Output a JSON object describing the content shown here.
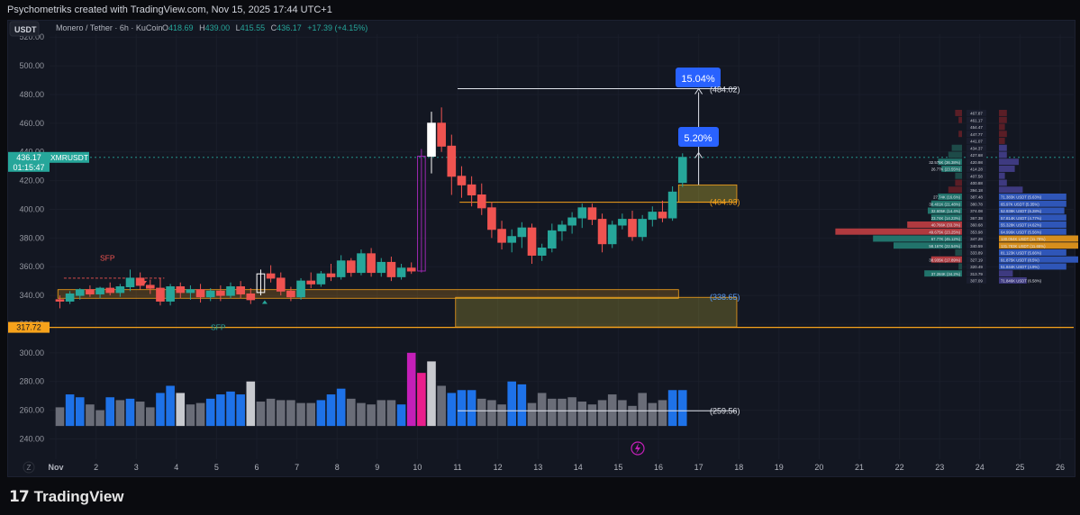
{
  "header": {
    "attribution": "Psychometriks created with TradingView.com, Nov 15, 2025 17:44 UTC+1",
    "currency_button": "USDT",
    "symbol_line": "Monero / Tether · 6h · KuCoin",
    "ohlc": {
      "o_label": "O",
      "o_value": "418.69",
      "h_label": "H",
      "h_value": "439.00",
      "l_label": "L",
      "l_value": "415.55",
      "c_label": "C",
      "c_value": "436.17",
      "change": "+17.39 (+4.15%)"
    }
  },
  "price_tag": {
    "price": "436.17",
    "countdown": "01:15:47",
    "symbol": "XMRUSDT"
  },
  "level_tag": "317.72",
  "annotations": {
    "target_pct": "15.04%",
    "first_pct": "5.20%",
    "target_price": "(484.02)",
    "zone_top": "(404.93)",
    "zone_low": "(338.65)",
    "volume_line": "(259.56)",
    "sfp_top": "SFP",
    "sfp_bottom": "SFP"
  },
  "footer": {
    "brand": "TradingView",
    "brand_mark": "17"
  },
  "colors": {
    "up": "#26a69a",
    "down": "#ef5350",
    "accent": "#2962ff",
    "orange": "#f7a21b",
    "vol_blue": "#1e72e8",
    "vol_grey": "#6a6d78",
    "vol_white": "#c8cacf",
    "vol_magenta": "#c41fb8",
    "vol_pink": "#e91e8c"
  },
  "chart_data": {
    "type": "candlestick",
    "title": "Monero / Tether · 6h · KuCoin",
    "y_axis": {
      "ticks": [
        240,
        260,
        280,
        300,
        320,
        340,
        360,
        380,
        400,
        420,
        440,
        460,
        480,
        500,
        520
      ],
      "ylim": [
        229,
        522
      ]
    },
    "x_axis": {
      "tick_labels": [
        "Nov",
        "2",
        "3",
        "4",
        "5",
        "6",
        "7",
        "8",
        "9",
        "10",
        "11",
        "12",
        "13",
        "14",
        "15",
        "16",
        "17",
        "18",
        "19",
        "20",
        "21",
        "22",
        "23",
        "24",
        "25",
        "26"
      ],
      "range": [
        0,
        26.2
      ],
      "corner_label": "Z"
    },
    "candles": [
      {
        "t": 0.1,
        "o": 337,
        "h": 340,
        "l": 331,
        "c": 336
      },
      {
        "t": 0.35,
        "o": 336,
        "h": 343,
        "l": 334,
        "c": 341
      },
      {
        "t": 0.6,
        "o": 340,
        "h": 345,
        "l": 337,
        "c": 344
      },
      {
        "t": 0.85,
        "o": 344,
        "h": 347,
        "l": 339,
        "c": 341
      },
      {
        "t": 1.1,
        "o": 341,
        "h": 346,
        "l": 338,
        "c": 345
      },
      {
        "t": 1.35,
        "o": 345,
        "h": 349,
        "l": 340,
        "c": 342
      },
      {
        "t": 1.6,
        "o": 342,
        "h": 348,
        "l": 339,
        "c": 346
      },
      {
        "t": 1.85,
        "o": 346,
        "h": 358,
        "l": 343,
        "c": 352
      },
      {
        "t": 2.1,
        "o": 352,
        "h": 356,
        "l": 344,
        "c": 347
      },
      {
        "t": 2.35,
        "o": 347,
        "h": 351,
        "l": 341,
        "c": 345
      },
      {
        "t": 2.6,
        "o": 345,
        "h": 352,
        "l": 333,
        "c": 336
      },
      {
        "t": 2.85,
        "o": 336,
        "h": 348,
        "l": 333,
        "c": 346
      },
      {
        "t": 3.1,
        "o": 346,
        "h": 349,
        "l": 338,
        "c": 342
      },
      {
        "t": 3.35,
        "o": 342,
        "h": 347,
        "l": 337,
        "c": 344
      },
      {
        "t": 3.6,
        "o": 344,
        "h": 348,
        "l": 335,
        "c": 339
      },
      {
        "t": 3.85,
        "o": 339,
        "h": 345,
        "l": 336,
        "c": 343
      },
      {
        "t": 4.1,
        "o": 343,
        "h": 347,
        "l": 336,
        "c": 340
      },
      {
        "t": 4.35,
        "o": 340,
        "h": 349,
        "l": 338,
        "c": 346
      },
      {
        "t": 4.6,
        "o": 346,
        "h": 350,
        "l": 338,
        "c": 341
      },
      {
        "t": 4.85,
        "o": 341,
        "h": 345,
        "l": 334,
        "c": 337
      },
      {
        "t": 5.1,
        "o": 342,
        "h": 358,
        "l": 340,
        "c": 355
      },
      {
        "t": 5.35,
        "o": 355,
        "h": 361,
        "l": 349,
        "c": 352
      },
      {
        "t": 5.6,
        "o": 352,
        "h": 356,
        "l": 340,
        "c": 343
      },
      {
        "t": 5.85,
        "o": 343,
        "h": 346,
        "l": 336,
        "c": 339
      },
      {
        "t": 6.1,
        "o": 339,
        "h": 352,
        "l": 337,
        "c": 350
      },
      {
        "t": 6.35,
        "o": 350,
        "h": 356,
        "l": 345,
        "c": 348
      },
      {
        "t": 6.6,
        "o": 348,
        "h": 357,
        "l": 346,
        "c": 355
      },
      {
        "t": 6.85,
        "o": 355,
        "h": 362,
        "l": 350,
        "c": 353
      },
      {
        "t": 7.1,
        "o": 353,
        "h": 368,
        "l": 351,
        "c": 364
      },
      {
        "t": 7.35,
        "o": 364,
        "h": 366,
        "l": 353,
        "c": 356
      },
      {
        "t": 7.6,
        "o": 356,
        "h": 372,
        "l": 354,
        "c": 369
      },
      {
        "t": 7.85,
        "o": 369,
        "h": 373,
        "l": 353,
        "c": 356
      },
      {
        "t": 8.1,
        "o": 356,
        "h": 366,
        "l": 353,
        "c": 363
      },
      {
        "t": 8.35,
        "o": 363,
        "h": 367,
        "l": 350,
        "c": 353
      },
      {
        "t": 8.6,
        "o": 353,
        "h": 362,
        "l": 351,
        "c": 359
      },
      {
        "t": 8.85,
        "o": 359,
        "h": 363,
        "l": 355,
        "c": 357
      },
      {
        "t": 9.1,
        "o": 357,
        "h": 442,
        "l": 356,
        "c": 437
      },
      {
        "t": 9.35,
        "o": 437,
        "h": 468,
        "l": 425,
        "c": 460
      },
      {
        "t": 9.6,
        "o": 460,
        "h": 471,
        "l": 440,
        "c": 444
      },
      {
        "t": 9.85,
        "o": 444,
        "h": 452,
        "l": 410,
        "c": 423
      },
      {
        "t": 10.1,
        "o": 423,
        "h": 430,
        "l": 408,
        "c": 417
      },
      {
        "t": 10.35,
        "o": 417,
        "h": 423,
        "l": 402,
        "c": 410
      },
      {
        "t": 10.6,
        "o": 410,
        "h": 418,
        "l": 396,
        "c": 401
      },
      {
        "t": 10.85,
        "o": 401,
        "h": 405,
        "l": 380,
        "c": 386
      },
      {
        "t": 11.1,
        "o": 386,
        "h": 392,
        "l": 372,
        "c": 377
      },
      {
        "t": 11.35,
        "o": 377,
        "h": 386,
        "l": 370,
        "c": 381
      },
      {
        "t": 11.6,
        "o": 381,
        "h": 391,
        "l": 373,
        "c": 387
      },
      {
        "t": 11.85,
        "o": 387,
        "h": 390,
        "l": 362,
        "c": 368
      },
      {
        "t": 12.1,
        "o": 368,
        "h": 376,
        "l": 364,
        "c": 373
      },
      {
        "t": 12.35,
        "o": 373,
        "h": 390,
        "l": 370,
        "c": 385
      },
      {
        "t": 12.6,
        "o": 385,
        "h": 392,
        "l": 378,
        "c": 389
      },
      {
        "t": 12.85,
        "o": 389,
        "h": 398,
        "l": 383,
        "c": 394
      },
      {
        "t": 13.1,
        "o": 394,
        "h": 404,
        "l": 387,
        "c": 401
      },
      {
        "t": 13.35,
        "o": 401,
        "h": 404,
        "l": 389,
        "c": 393
      },
      {
        "t": 13.6,
        "o": 393,
        "h": 397,
        "l": 370,
        "c": 376
      },
      {
        "t": 13.85,
        "o": 376,
        "h": 392,
        "l": 373,
        "c": 389
      },
      {
        "t": 14.1,
        "o": 389,
        "h": 397,
        "l": 386,
        "c": 393
      },
      {
        "t": 14.35,
        "o": 393,
        "h": 399,
        "l": 378,
        "c": 381
      },
      {
        "t": 14.6,
        "o": 381,
        "h": 396,
        "l": 378,
        "c": 393
      },
      {
        "t": 14.85,
        "o": 393,
        "h": 402,
        "l": 388,
        "c": 398
      },
      {
        "t": 15.1,
        "o": 398,
        "h": 406,
        "l": 391,
        "c": 394
      },
      {
        "t": 15.35,
        "o": 394,
        "h": 416,
        "l": 392,
        "c": 412
      },
      {
        "t": 15.6,
        "o": 418.69,
        "h": 439,
        "l": 415.55,
        "c": 436.17
      }
    ],
    "volume": {
      "baseline_price": 249,
      "scale_note": "volume bars drawn in price units on the same axis",
      "bars": [
        {
          "t": 0.1,
          "top": 262,
          "c": "grey"
        },
        {
          "t": 0.35,
          "top": 271,
          "c": "blue"
        },
        {
          "t": 0.6,
          "top": 269,
          "c": "blue"
        },
        {
          "t": 0.85,
          "top": 264,
          "c": "grey"
        },
        {
          "t": 1.1,
          "top": 260,
          "c": "grey"
        },
        {
          "t": 1.35,
          "top": 269,
          "c": "blue"
        },
        {
          "t": 1.6,
          "top": 267,
          "c": "grey"
        },
        {
          "t": 1.85,
          "top": 268,
          "c": "blue"
        },
        {
          "t": 2.1,
          "top": 266,
          "c": "grey"
        },
        {
          "t": 2.35,
          "top": 262,
          "c": "grey"
        },
        {
          "t": 2.6,
          "top": 272,
          "c": "blue"
        },
        {
          "t": 2.85,
          "top": 277,
          "c": "blue"
        },
        {
          "t": 3.1,
          "top": 272,
          "c": "white"
        },
        {
          "t": 3.35,
          "top": 264,
          "c": "grey"
        },
        {
          "t": 3.6,
          "top": 265,
          "c": "grey"
        },
        {
          "t": 3.85,
          "top": 268,
          "c": "blue"
        },
        {
          "t": 4.1,
          "top": 271,
          "c": "blue"
        },
        {
          "t": 4.35,
          "top": 273,
          "c": "blue"
        },
        {
          "t": 4.6,
          "top": 271,
          "c": "blue"
        },
        {
          "t": 4.85,
          "top": 280,
          "c": "white"
        },
        {
          "t": 5.1,
          "top": 266,
          "c": "grey"
        },
        {
          "t": 5.35,
          "top": 268,
          "c": "grey"
        },
        {
          "t": 5.6,
          "top": 267,
          "c": "grey"
        },
        {
          "t": 5.85,
          "top": 267,
          "c": "grey"
        },
        {
          "t": 6.1,
          "top": 265,
          "c": "grey"
        },
        {
          "t": 6.35,
          "top": 265,
          "c": "grey"
        },
        {
          "t": 6.6,
          "top": 267,
          "c": "blue"
        },
        {
          "t": 6.85,
          "top": 271,
          "c": "blue"
        },
        {
          "t": 7.1,
          "top": 275,
          "c": "blue"
        },
        {
          "t": 7.35,
          "top": 268,
          "c": "grey"
        },
        {
          "t": 7.6,
          "top": 265,
          "c": "grey"
        },
        {
          "t": 7.85,
          "top": 264,
          "c": "grey"
        },
        {
          "t": 8.1,
          "top": 267,
          "c": "grey"
        },
        {
          "t": 8.35,
          "top": 267,
          "c": "grey"
        },
        {
          "t": 8.6,
          "top": 264,
          "c": "blue"
        },
        {
          "t": 8.85,
          "top": 300,
          "c": "magenta"
        },
        {
          "t": 9.1,
          "top": 286,
          "c": "pink"
        },
        {
          "t": 9.35,
          "top": 294,
          "c": "white"
        },
        {
          "t": 9.6,
          "top": 277,
          "c": "grey"
        },
        {
          "t": 9.85,
          "top": 272,
          "c": "blue"
        },
        {
          "t": 10.1,
          "top": 274,
          "c": "blue"
        },
        {
          "t": 10.35,
          "top": 274,
          "c": "blue"
        },
        {
          "t": 10.6,
          "top": 268,
          "c": "grey"
        },
        {
          "t": 10.85,
          "top": 267,
          "c": "grey"
        },
        {
          "t": 11.1,
          "top": 264,
          "c": "grey"
        },
        {
          "t": 11.35,
          "top": 280,
          "c": "blue"
        },
        {
          "t": 11.6,
          "top": 278,
          "c": "blue"
        },
        {
          "t": 11.85,
          "top": 265,
          "c": "grey"
        },
        {
          "t": 12.1,
          "top": 272,
          "c": "grey"
        },
        {
          "t": 12.35,
          "top": 268,
          "c": "grey"
        },
        {
          "t": 12.6,
          "top": 268,
          "c": "grey"
        },
        {
          "t": 12.85,
          "top": 269,
          "c": "grey"
        },
        {
          "t": 13.1,
          "top": 266,
          "c": "grey"
        },
        {
          "t": 13.35,
          "top": 264,
          "c": "grey"
        },
        {
          "t": 13.6,
          "top": 267,
          "c": "grey"
        },
        {
          "t": 13.85,
          "top": 271,
          "c": "grey"
        },
        {
          "t": 14.1,
          "top": 267,
          "c": "grey"
        },
        {
          "t": 14.35,
          "top": 263,
          "c": "grey"
        },
        {
          "t": 14.6,
          "top": 272,
          "c": "grey"
        },
        {
          "t": 14.85,
          "top": 265,
          "c": "grey"
        },
        {
          "t": 15.1,
          "top": 267,
          "c": "grey"
        },
        {
          "t": 15.35,
          "top": 274,
          "c": "blue"
        },
        {
          "t": 15.6,
          "top": 274,
          "c": "blue"
        }
      ]
    },
    "levels": {
      "target": 484.02,
      "first_target": 439.5,
      "zone_top_high": 417,
      "zone_top_low": 404.93,
      "upper_support_high": 344,
      "upper_support_low": 338,
      "zone_low_high": 338.65,
      "zone_low_low": 318,
      "horizontal_line": 317.72,
      "volume_line": 259.56,
      "sfp_high": 352
    },
    "order_book": {
      "mid_labels": [
        "467.87",
        "461.17",
        "454.47",
        "447.77",
        "441.07",
        "434.37",
        "427.68",
        "420.98",
        "414.28",
        "407.58",
        "400.88",
        "394.18",
        "387.48",
        "380.78",
        "374.08",
        "367.38",
        "360.68",
        "353.98",
        "347.28",
        "340.59",
        "333.89",
        "327.19",
        "320.49",
        "313.79",
        "307.09"
      ],
      "left_labels": [
        "",
        "",
        "",
        "",
        "",
        "",
        "",
        "32.575K (36.38%)",
        "26.77K (23.55%)",
        "",
        "",
        "",
        "27.74K (16.6%)",
        "30.401K (21.48%)",
        "32.605K (14.4%)",
        "23.74K (14.23%)",
        "40.766K (33.3%)",
        "49.675K (23.25%)",
        "67.77K (45.12%)",
        "58.167K (22.54%)",
        "",
        "38.935K (17.89%)",
        "",
        "37.284K (34.2%)"
      ],
      "right_labels": [
        "",
        "",
        "",
        "",
        "",
        "",
        "",
        "",
        "",
        "",
        "",
        "",
        "71.383K USDT (5.63%)",
        "65.97K USDT (5.35%)",
        "52.939K USDT (6.28%)",
        "57.814K USDT (4.77%)",
        "55.328K USDT (4.62%)",
        "64.996K USDT (5.56%)",
        "130.054K USDT (11.78%)",
        "131.783K USDT (11.65%)",
        "81.123K USDT (5.66%)",
        "91.875K USDT (8.5%)",
        "51.844K USDT (4.9%)",
        "",
        "71.846K USDT (6.58%)"
      ],
      "left_widths": [
        0.02,
        0.01,
        0,
        0.01,
        0,
        0.03,
        0.04,
        0.07,
        0.06,
        0.02,
        0.02,
        0.04,
        0.07,
        0.09,
        0.1,
        0.09,
        0.16,
        0.37,
        0.26,
        0.2,
        0.02,
        0.09,
        0.01,
        0.11
      ],
      "right_widths": [
        0.04,
        0.04,
        0.03,
        0.04,
        0.03,
        0.04,
        0.04,
        0.1,
        0.08,
        0.03,
        0.04,
        0.12,
        0.34,
        0.34,
        0.33,
        0.34,
        0.34,
        0.34,
        0.4,
        0.4,
        0.34,
        0.4,
        0.34,
        0.07,
        0.14
      ],
      "left_colors": [
        "dred",
        "dred",
        "dred",
        "dred",
        "dred",
        "dteal",
        "dteal",
        "teal",
        "teal",
        "dteal",
        "dred",
        "dred",
        "teal",
        "teal",
        "teal",
        "teal",
        "red",
        "red",
        "teal",
        "teal",
        "dteal",
        "red",
        "dteal",
        "teal"
      ],
      "right_colors": [
        "dred",
        "dred",
        "dred",
        "dred",
        "dred",
        "purple",
        "purple",
        "purple",
        "purple",
        "purple",
        "purple",
        "purple",
        "blue",
        "blue",
        "blue",
        "blue",
        "blue",
        "blue",
        "orange",
        "orange",
        "blue",
        "blue",
        "blue",
        "purple",
        "purple"
      ]
    }
  }
}
